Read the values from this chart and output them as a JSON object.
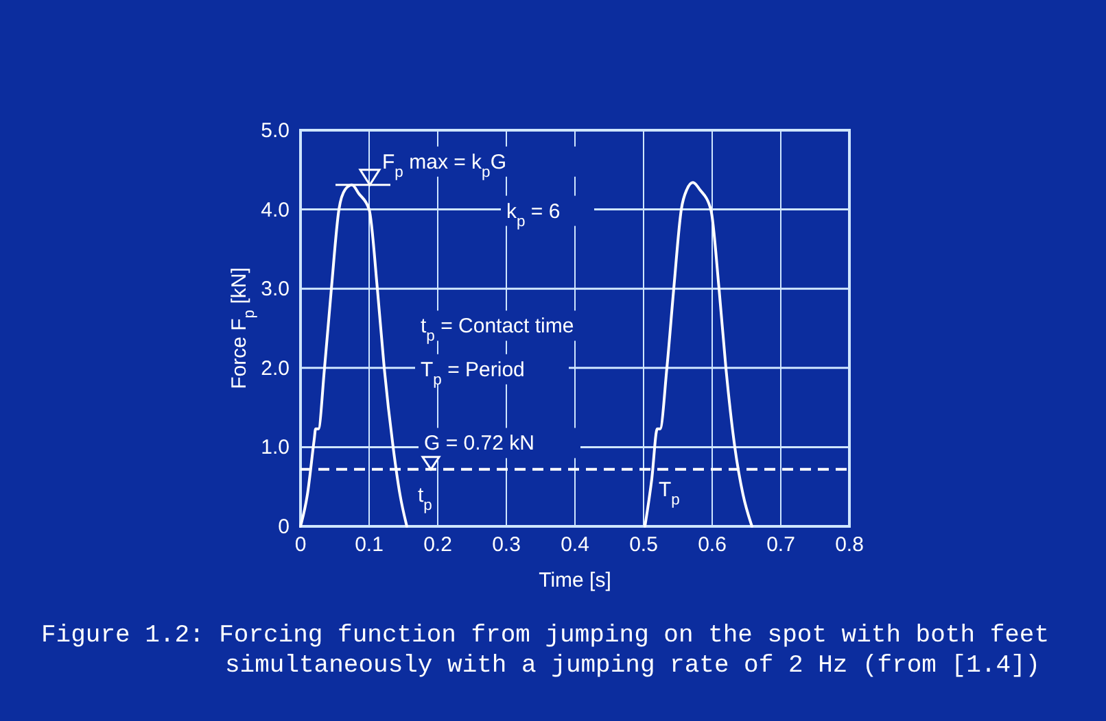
{
  "chart_data": {
    "type": "line",
    "xlabel": "Time [s]",
    "ylabel": "Force F$_{p}$ [kN]",
    "xlim": [
      0,
      0.8
    ],
    "xticks": [
      0,
      0.1,
      0.2,
      0.3,
      0.4,
      0.5,
      0.6,
      0.7,
      0.8
    ],
    "ylim": [
      0,
      5
    ],
    "yticks": [
      0,
      {
        "value": 1,
        "label": "1.0"
      },
      {
        "value": 2,
        "label": "2.0"
      },
      {
        "value": 3,
        "label": "3.0"
      },
      {
        "value": 4,
        "label": "4.0"
      },
      {
        "value": 5,
        "label": "5.0"
      }
    ],
    "grid": true,
    "marker": "none",
    "line_style": "solid",
    "series": [
      {
        "color": "#ffffff",
        "x": [
          0,
          0.01,
          0.02,
          0.022,
          0.026,
          0.035,
          0.045,
          0.056,
          0.065,
          0.075,
          0.085,
          0.1,
          0.112,
          0.122,
          0.135,
          0.145,
          0.155
        ],
        "values": [
          0,
          0.4,
          1.1,
          1.23,
          1.23,
          2,
          3,
          4,
          4.25,
          4.31,
          4.2,
          4,
          3,
          2,
          1,
          0.4,
          0
        ]
      },
      {
        "color": "#ffffff",
        "x": [
          0.502,
          0.512,
          0.52,
          0.524,
          0.534,
          0.544,
          0.555,
          0.563,
          0.572,
          0.582,
          0.598,
          0.61,
          0.62,
          0.633,
          0.645,
          0.658
        ],
        "values": [
          0,
          0.6,
          1.23,
          1.23,
          2,
          3,
          4,
          4.25,
          4.34,
          4.25,
          4,
          3,
          2,
          1,
          0.4,
          0
        ]
      }
    ],
    "ref_lines": [
      {
        "axis": "y",
        "value": 0.72,
        "label": "G = 0.72 kN",
        "line_style": "dashed",
        "color": "#ffffff"
      }
    ],
    "annotations": [
      {
        "text": "F$_{p}$ max = k$_{p}$G",
        "x": 0.075,
        "y": 4.31
      },
      "k$_{p}$ = 6",
      "t$_{p}$ = Contact time",
      "T$_{p}$ = Period",
      {
        "text": "t$_{p}$",
        "x": 0.155,
        "y": 0
      },
      {
        "text": "T$_{p}$",
        "x": 0.502,
        "y": 0
      },
      "Figure 1.2: Forcing function from jumping on the spot with both feet simultaneously with a jumping rate of 2 Hz (from [1.4])"
    ]
  }
}
